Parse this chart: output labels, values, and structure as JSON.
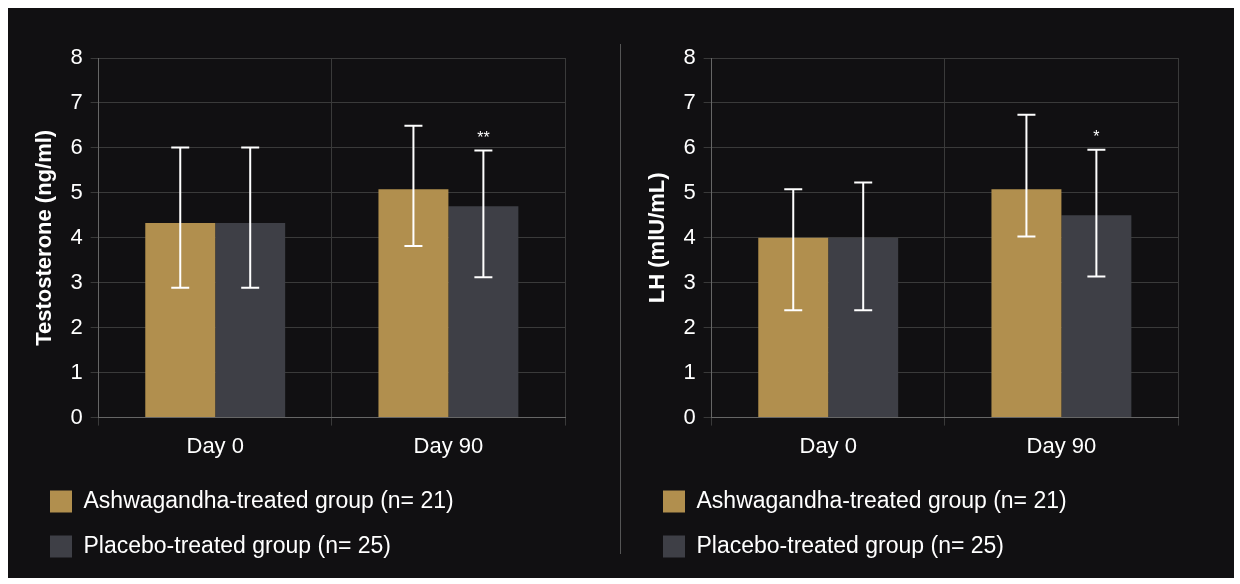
{
  "chart_data": [
    {
      "type": "bar",
      "categories": [
        "Day 0",
        "Day 90"
      ],
      "ylabel": "Testosterone (ng/ml)",
      "ylim": [
        0,
        8
      ],
      "yticks": [
        0,
        1,
        2,
        3,
        4,
        5,
        6,
        7,
        8
      ],
      "grid": true,
      "legend": "bottom left",
      "series": [
        {
          "name": "Ashwagandha-treated group (n= 21)",
          "color": "#b18f4e",
          "values": [
            4.33,
            5.08
          ],
          "errors": [
            [
              2.89,
              6.01
            ],
            [
              3.82,
              6.49
            ]
          ]
        },
        {
          "name": "Placebo-treated group (n= 25)",
          "color": "#3e3f46",
          "values": [
            4.33,
            4.7
          ],
          "errors": [
            [
              2.89,
              6.01
            ],
            [
              3.12,
              5.94
            ]
          ]
        }
      ],
      "annotations": [
        "**"
      ]
    },
    {
      "type": "bar",
      "categories": [
        "Day 0",
        "Day 90"
      ],
      "ylabel": "LH (mlU/mL)",
      "ylim": [
        0,
        8
      ],
      "yticks": [
        0,
        1,
        2,
        3,
        4,
        5,
        6,
        7,
        8
      ],
      "grid": true,
      "legend": "bottom left",
      "series": [
        {
          "name": "Ashwagandha-treated group (n= 21)",
          "color": "#b18f4e",
          "values": [
            4.0,
            5.08
          ],
          "errors": [
            [
              2.39,
              5.08
            ],
            [
              4.03,
              6.74
            ]
          ]
        },
        {
          "name": "Placebo-treated group (n= 25)",
          "color": "#3e3f46",
          "values": [
            4.0,
            4.5
          ],
          "errors": [
            [
              2.39,
              5.23
            ],
            [
              3.14,
              5.96
            ]
          ]
        }
      ],
      "annotations": [
        "*"
      ]
    }
  ]
}
